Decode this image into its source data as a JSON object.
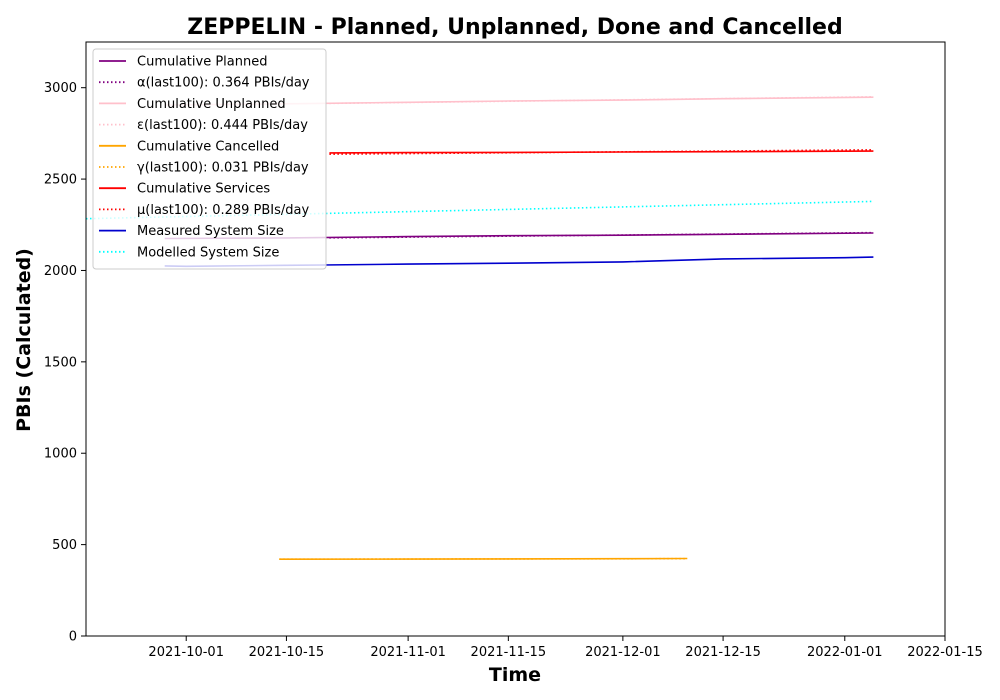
{
  "chart_data": {
    "type": "line",
    "title": "ZEPPELIN - Planned, Unplanned, Done  and Cancelled",
    "xlabel": "Time",
    "ylabel": "PBIs (Calculated)",
    "xlim": [
      "2021-09-17",
      "2022-01-15"
    ],
    "ylim": [
      0,
      3250
    ],
    "x_ticks": [
      "2021-10-01",
      "2021-10-15",
      "2021-11-01",
      "2021-11-15",
      "2021-12-01",
      "2021-12-15",
      "2022-01-01",
      "2022-01-15"
    ],
    "y_ticks": [
      0,
      500,
      1000,
      1500,
      2000,
      2500,
      3000
    ],
    "grid": false,
    "legend_position": "upper-left",
    "series": [
      {
        "name": "Cumulative Planned",
        "color": "#800080",
        "style": "solid",
        "points": [
          [
            "2021-09-28",
            2175
          ],
          [
            "2021-10-15",
            2178
          ],
          [
            "2021-11-01",
            2185
          ],
          [
            "2021-11-15",
            2190
          ],
          [
            "2021-12-01",
            2193
          ],
          [
            "2021-12-15",
            2198
          ],
          [
            "2022-01-05",
            2205
          ]
        ]
      },
      {
        "name": "α(last100): 0.364 PBIs/day",
        "color": "#800080",
        "style": "dotted",
        "points": [
          [
            "2021-10-21",
            2178
          ],
          [
            "2022-01-05",
            2207
          ]
        ]
      },
      {
        "name": "Cumulative Unplanned",
        "color": "#ffc0cb",
        "style": "solid",
        "points": [
          [
            "2021-09-28",
            2905
          ],
          [
            "2021-10-15",
            2912
          ],
          [
            "2021-11-01",
            2920
          ],
          [
            "2021-11-15",
            2927
          ],
          [
            "2021-12-01",
            2932
          ],
          [
            "2021-12-15",
            2940
          ],
          [
            "2022-01-05",
            2948
          ]
        ]
      },
      {
        "name": "ε(last100): 0.444 PBIs/day",
        "color": "#ffc0cb",
        "style": "dotted",
        "points": [
          [
            "2021-10-21",
            2914
          ],
          [
            "2022-01-05",
            2950
          ]
        ]
      },
      {
        "name": "Cumulative Cancelled",
        "color": "#ffa500",
        "style": "solid",
        "points": [
          [
            "2021-10-14",
            420
          ],
          [
            "2021-11-01",
            421
          ],
          [
            "2021-12-01",
            423
          ],
          [
            "2021-12-10",
            424
          ]
        ]
      },
      {
        "name": "γ(last100): 0.031 PBIs/day",
        "color": "#ffa500",
        "style": "dotted",
        "points": [
          [
            "2021-10-14",
            420
          ],
          [
            "2021-12-10",
            423
          ]
        ]
      },
      {
        "name": "Cumulative Services",
        "color": "#ff0000",
        "style": "solid",
        "points": [
          [
            "2021-10-21",
            2643
          ],
          [
            "2021-11-01",
            2645
          ],
          [
            "2021-11-15",
            2646
          ],
          [
            "2021-12-01",
            2648
          ],
          [
            "2021-12-15",
            2650
          ],
          [
            "2022-01-05",
            2653
          ]
        ]
      },
      {
        "name": "μ(last100): 0.289 PBIs/day",
        "color": "#ff0000",
        "style": "dotted",
        "points": [
          [
            "2021-10-21",
            2636
          ],
          [
            "2022-01-05",
            2660
          ]
        ]
      },
      {
        "name": "Measured System Size",
        "color": "#0000cd",
        "style": "solid",
        "points": [
          [
            "2021-09-28",
            2025
          ],
          [
            "2021-10-01",
            2023
          ],
          [
            "2021-10-15",
            2028
          ],
          [
            "2021-10-20",
            2030
          ],
          [
            "2021-11-01",
            2035
          ],
          [
            "2021-11-15",
            2040
          ],
          [
            "2021-12-01",
            2047
          ],
          [
            "2021-12-15",
            2063
          ],
          [
            "2022-01-01",
            2070
          ],
          [
            "2022-01-05",
            2073
          ]
        ]
      },
      {
        "name": "Modelled System Size",
        "color": "#00ffff",
        "style": "dotted",
        "points": [
          [
            "2021-09-17",
            2283
          ],
          [
            "2022-01-05",
            2378
          ]
        ]
      }
    ]
  }
}
